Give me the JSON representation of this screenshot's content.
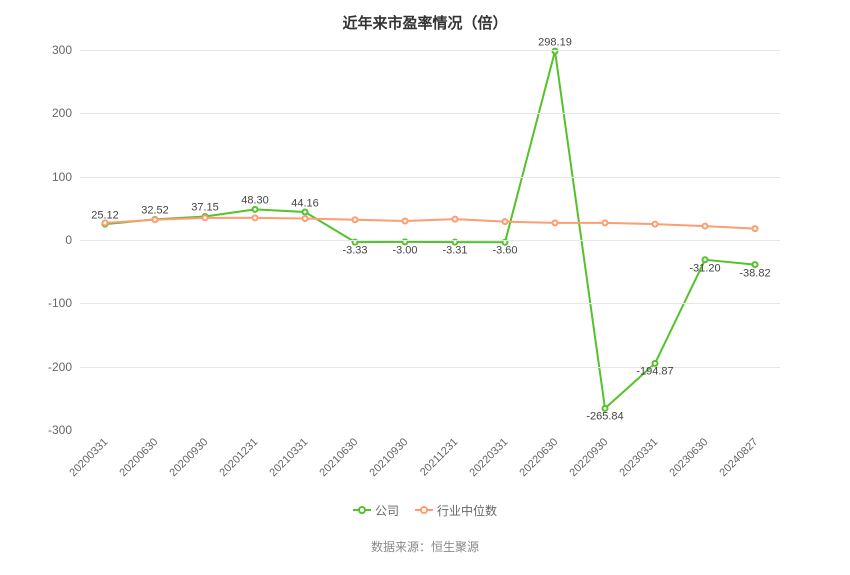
{
  "chart": {
    "type": "line",
    "title": "近年来市盈率情况（倍）",
    "title_fontsize": 15,
    "title_color": "#333333",
    "background_color": "#ffffff",
    "grid_color": "#e6e6e6",
    "axis_label_color": "#666666",
    "axis_label_fontsize": 12,
    "x_tick_rotation_deg": -45,
    "x_tick_fontsize": 11,
    "ylim": [
      -300,
      300
    ],
    "y_ticks": [
      -300,
      -200,
      -100,
      0,
      100,
      200,
      300
    ],
    "categories": [
      "20200331",
      "20200630",
      "20200930",
      "20201231",
      "20210331",
      "20210630",
      "20210930",
      "20211231",
      "20220331",
      "20220630",
      "20220930",
      "20230331",
      "20230630",
      "20240827"
    ],
    "series": [
      {
        "name": "公司",
        "color": "#54c22b",
        "line_width": 2,
        "marker": "circle-open",
        "marker_size": 5,
        "values": [
          25.12,
          32.52,
          37.15,
          48.3,
          44.16,
          -3.33,
          -3.0,
          -3.31,
          -3.6,
          298.19,
          -265.84,
          -194.87,
          -31.2,
          -38.82
        ],
        "show_value_labels": true,
        "value_label_color": "#444444",
        "value_label_fontsize": 11
      },
      {
        "name": "行业中位数",
        "color": "#fd9d72",
        "line_width": 2,
        "marker": "circle-open",
        "marker_size": 5,
        "values": [
          27,
          32,
          35,
          35,
          34,
          32,
          30,
          33,
          29,
          27,
          27,
          25,
          22,
          18
        ],
        "show_value_labels": false
      }
    ],
    "legend": {
      "position": "bottom",
      "fontsize": 12,
      "text_color": "#666666"
    },
    "source_note": {
      "label": "数据来源：",
      "value": "恒生聚源",
      "fontsize": 12,
      "color": "#888888"
    }
  }
}
